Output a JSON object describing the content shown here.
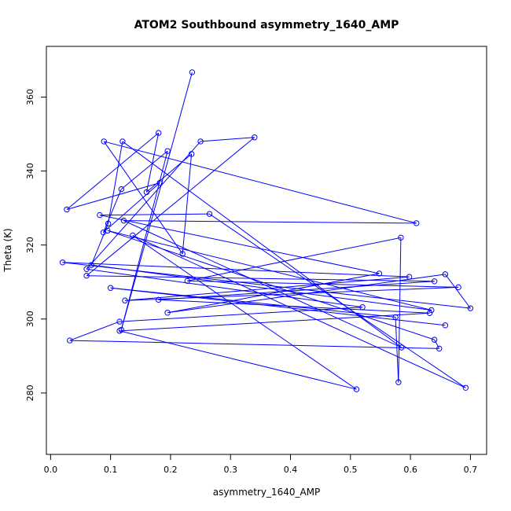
{
  "chart_data": {
    "type": "line",
    "title": "ATOM2 Southbound asymmetry_1640_AMP",
    "xlabel": "asymmetry_1640_AMP",
    "ylabel": "Theta (K)",
    "xlim": [
      -0.007,
      0.727
    ],
    "ylim": [
      263.4,
      373.7
    ],
    "xticks": [
      0.0,
      0.1,
      0.2,
      0.3,
      0.4,
      0.5,
      0.6,
      0.7
    ],
    "xtick_labels": [
      "0.0",
      "0.1",
      "0.2",
      "0.3",
      "0.4",
      "0.5",
      "0.6",
      "0.7"
    ],
    "yticks": [
      280,
      300,
      320,
      340,
      360
    ],
    "ytick_labels": [
      "280",
      "300",
      "320",
      "340",
      "360"
    ],
    "series_color": "#0000ff",
    "grid": false,
    "legend": "none",
    "series": [
      {
        "name": "",
        "points": [
          [
            0.236,
            366.7
          ],
          [
            0.118,
            297.1
          ],
          [
            0.195,
            345.4
          ],
          [
            0.118,
            335.1
          ],
          [
            0.088,
            323.4
          ],
          [
            0.182,
            336.8
          ],
          [
            0.027,
            329.6
          ],
          [
            0.18,
            350.3
          ],
          [
            0.16,
            334.3
          ],
          [
            0.235,
            344.6
          ],
          [
            0.22,
            317.6
          ],
          [
            0.089,
            348.0
          ],
          [
            0.61,
            325.9
          ],
          [
            0.122,
            326.6
          ],
          [
            0.585,
            292.3
          ],
          [
            0.12,
            348.0
          ],
          [
            0.096,
            325.8
          ],
          [
            0.068,
            314.6
          ],
          [
            0.635,
            302.4
          ],
          [
            0.095,
            323.9
          ],
          [
            0.64,
            294.4
          ],
          [
            0.648,
            292.0
          ],
          [
            0.032,
            294.2
          ],
          [
            0.115,
            299.3
          ],
          [
            0.52,
            303.2
          ],
          [
            0.06,
            313.5
          ],
          [
            0.25,
            348.0
          ],
          [
            0.34,
            349.1
          ],
          [
            0.06,
            311.7
          ],
          [
            0.64,
            310.2
          ],
          [
            0.18,
            305.2
          ],
          [
            0.632,
            301.6
          ],
          [
            0.115,
            296.8
          ],
          [
            0.51,
            281.0
          ],
          [
            0.137,
            322.6
          ],
          [
            0.692,
            281.4
          ],
          [
            0.265,
            328.4
          ],
          [
            0.082,
            328.1
          ],
          [
            0.548,
            312.3
          ],
          [
            0.195,
            301.7
          ],
          [
            0.658,
            312.1
          ],
          [
            0.7,
            302.9
          ],
          [
            0.02,
            315.3
          ],
          [
            0.598,
            311.4
          ],
          [
            0.124,
            305.0
          ],
          [
            0.68,
            308.6
          ],
          [
            0.228,
            310.3
          ],
          [
            0.584,
            322.0
          ],
          [
            0.58,
            282.9
          ],
          [
            0.575,
            300.5
          ],
          [
            0.1,
            308.4
          ],
          [
            0.658,
            298.3
          ]
        ]
      }
    ]
  }
}
